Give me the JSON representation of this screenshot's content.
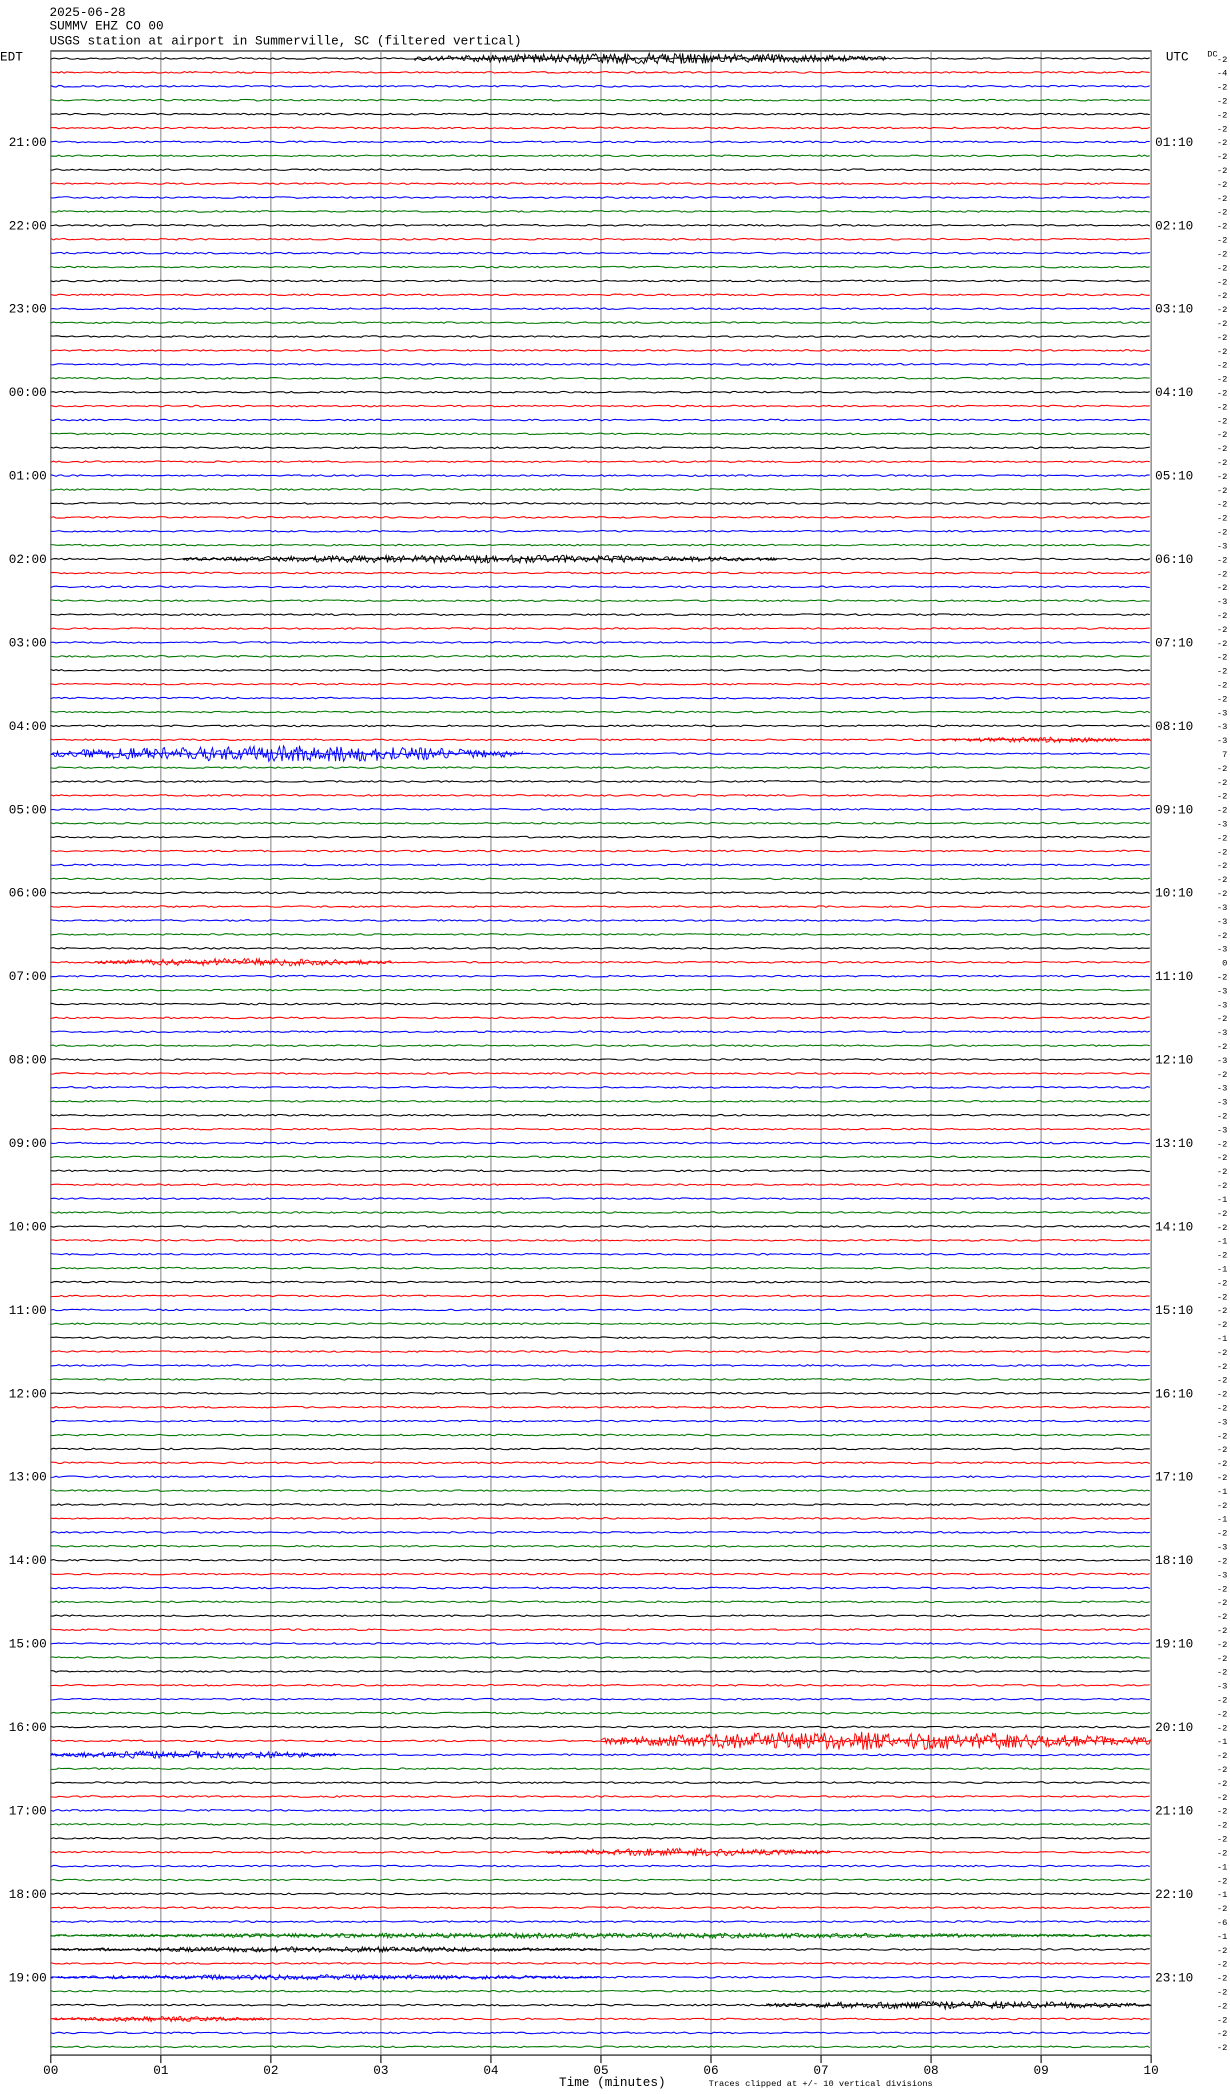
{
  "chart_data": {
    "type": "seismogram",
    "date": "2025-06-28",
    "station": "SUMMV EHZ CO 00",
    "title": "USGS station at airport in Summerville, SC (filtered vertical)",
    "left_header": "EDT",
    "right_header": "UTC",
    "offset_header": "DC",
    "xlabel": "Time (minutes)",
    "note": "Traces clipped at +/- 10 vertical divisions",
    "xlim": [
      0,
      10
    ],
    "xticks": [
      {
        "value": 0,
        "label": "00"
      },
      {
        "value": 1,
        "label": "01"
      },
      {
        "value": 2,
        "label": "02"
      },
      {
        "value": 3,
        "label": "03"
      },
      {
        "value": 4,
        "label": "04"
      },
      {
        "value": 5,
        "label": "05"
      },
      {
        "value": 6,
        "label": "06"
      },
      {
        "value": 7,
        "label": "07"
      },
      {
        "value": 8,
        "label": "08"
      },
      {
        "value": 9,
        "label": "09"
      },
      {
        "value": 10,
        "label": "10"
      }
    ],
    "colors": [
      "#000000",
      "#ff0000",
      "#0000ff",
      "#007700"
    ],
    "left_labels": [
      "21:00",
      "22:00",
      "23:00",
      "00:00",
      "01:00",
      "02:00",
      "03:00",
      "04:00",
      "05:00",
      "06:00",
      "07:00",
      "08:00",
      "09:00",
      "10:00",
      "11:00",
      "12:00",
      "13:00",
      "14:00",
      "15:00",
      "16:00",
      "17:00",
      "18:00",
      "19:00"
    ],
    "right_labels": [
      "01:10",
      "02:10",
      "03:10",
      "04:10",
      "05:10",
      "06:10",
      "07:10",
      "08:10",
      "09:10",
      "10:10",
      "11:10",
      "12:10",
      "13:10",
      "14:10",
      "15:10",
      "16:10",
      "17:10",
      "18:10",
      "19:10",
      "20:10",
      "21:10",
      "22:10",
      "23:10"
    ],
    "offsets": [
      -2,
      -4,
      -2,
      -2,
      -2,
      -2,
      -2,
      -2,
      -2,
      -2,
      -2,
      -2,
      -2,
      -2,
      -2,
      -2,
      -2,
      -2,
      -2,
      -2,
      -2,
      -2,
      -2,
      -2,
      -2,
      -2,
      -2,
      -2,
      -2,
      -2,
      -2,
      -2,
      -2,
      -2,
      -2,
      -3,
      -2,
      -2,
      -2,
      -3,
      -2,
      -2,
      -2,
      -2,
      -2,
      -2,
      -2,
      -3,
      -3,
      -3,
      7,
      -2,
      -2,
      -2,
      -2,
      -3,
      -2,
      -2,
      -2,
      -2,
      -2,
      -3,
      -3,
      -2,
      -3,
      0,
      -2,
      -3,
      -3,
      -2,
      -3,
      -2,
      -3,
      -2,
      -3,
      -3,
      -2,
      -3,
      -2,
      -2,
      -2,
      -2,
      -1,
      -2,
      -2,
      -1,
      -2,
      -1,
      -2,
      -2,
      -2,
      -2,
      -1,
      -2,
      -2,
      -2,
      -2,
      -2,
      -3,
      -2,
      -2,
      -2,
      -2,
      -1,
      -2,
      -1,
      -2,
      -3,
      -2,
      -3,
      -2,
      -2,
      -2,
      -2,
      -2,
      -2,
      -2,
      -3,
      -2,
      -2,
      -2,
      -1,
      -2,
      -2,
      -2,
      -2,
      -2,
      -2,
      -2,
      -2,
      -1,
      -2,
      -1,
      -2,
      -6,
      -1,
      -2,
      -2,
      -2,
      -2,
      -2,
      -2,
      -2,
      -2
    ],
    "events": [
      {
        "row": 0,
        "start": 3.3,
        "end": 7.6,
        "amplitude": 4
      },
      {
        "row": 36,
        "start": 1.2,
        "end": 6.6,
        "amplitude": 3
      },
      {
        "row": 49,
        "start": 8.1,
        "end": 10,
        "amplitude": 2
      },
      {
        "row": 50,
        "start": 0,
        "end": 4.3,
        "amplitude": 6
      },
      {
        "row": 65,
        "start": 0.4,
        "end": 3.1,
        "amplitude": 3
      },
      {
        "row": 121,
        "start": 5,
        "end": 10,
        "amplitude": 7
      },
      {
        "row": 122,
        "start": 0,
        "end": 2.6,
        "amplitude": 3
      },
      {
        "row": 129,
        "start": 4.5,
        "end": 7.1,
        "amplitude": 3
      },
      {
        "row": 135,
        "start": 0,
        "end": 10,
        "amplitude": 2
      },
      {
        "row": 136,
        "start": 0,
        "end": 5,
        "amplitude": 2
      },
      {
        "row": 138,
        "start": 0,
        "end": 5,
        "amplitude": 2
      },
      {
        "row": 140,
        "start": 6.5,
        "end": 10,
        "amplitude": 3
      },
      {
        "row": 141,
        "start": 0,
        "end": 2,
        "amplitude": 2
      }
    ]
  }
}
